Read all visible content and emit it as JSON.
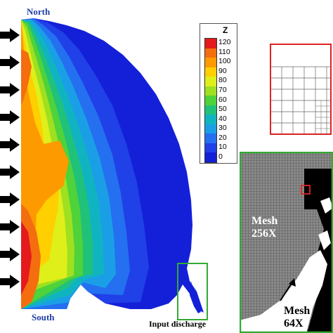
{
  "labels": {
    "north": "North",
    "south": "South",
    "input_discharge": "Input discharge"
  },
  "legend": {
    "title": "Z",
    "ticks": [
      "120",
      "110",
      "100",
      "90",
      "80",
      "70",
      "60",
      "50",
      "40",
      "30",
      "20",
      "10",
      "0"
    ],
    "colors": [
      "#e41a1c",
      "#f46d0f",
      "#fd9a00",
      "#ffcf00",
      "#dfef1a",
      "#9fe020",
      "#4fd23a",
      "#20c27a",
      "#10b4c0",
      "#1a9fe6",
      "#2470f0",
      "#2040e8",
      "#1420d8"
    ]
  },
  "mesh": {
    "fine": {
      "line1": "Mesh",
      "line2": "256X"
    },
    "coarse": {
      "line1": "Mesh",
      "line2": "64X"
    }
  },
  "colors": {
    "arrow": "#000000",
    "green_frame": "#33aa33",
    "red_frame": "#dd2222"
  }
}
